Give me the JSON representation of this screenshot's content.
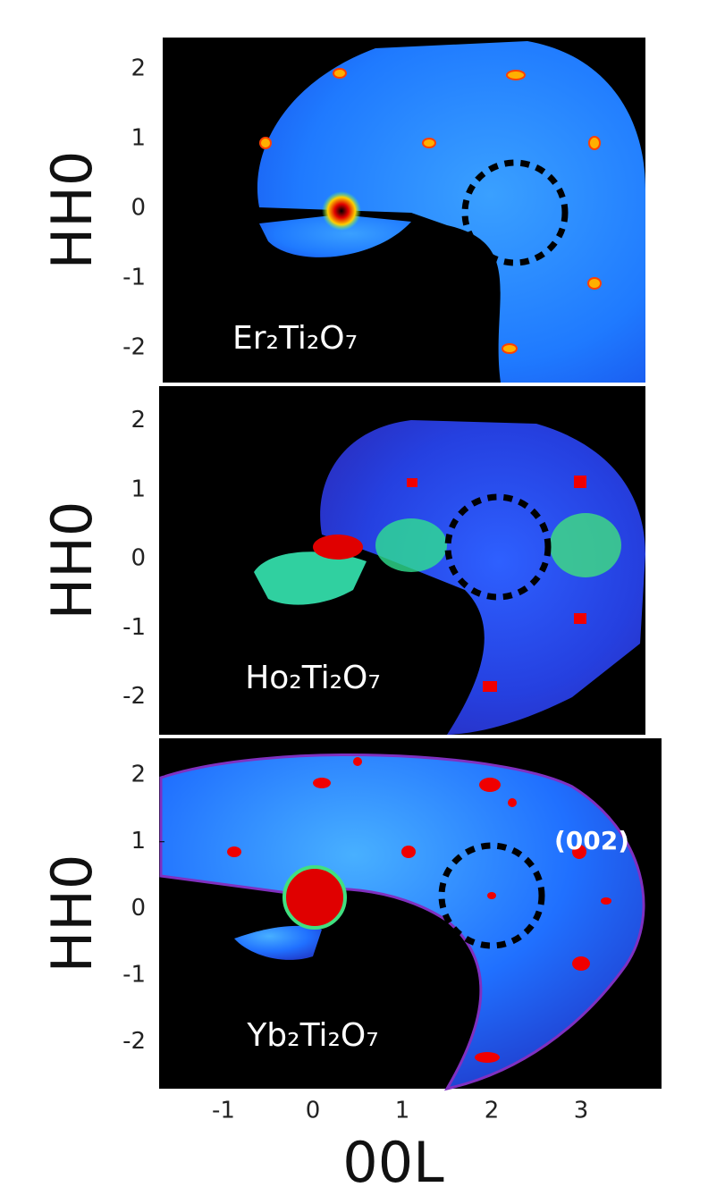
{
  "chart_data": [
    {
      "type": "heatmap",
      "label": "Er₂Ti₂O₇",
      "ylabel": "HH0",
      "ylim": [
        -2.5,
        2.45
      ],
      "yticks": [
        -2,
        -1,
        0,
        1,
        2
      ]
    },
    {
      "type": "heatmap",
      "label": "Ho₂Ti₂O₇",
      "ylabel": "HH0",
      "ylim": [
        -2.55,
        2.5
      ],
      "yticks": [
        -2,
        -1,
        0,
        1,
        2
      ]
    },
    {
      "type": "heatmap",
      "label": "Yb₂Ti₂O₇",
      "ylabel": "HH0",
      "ylim": [
        -2.7,
        2.55
      ],
      "yticks": [
        -2,
        -1,
        0,
        1,
        2
      ],
      "annotation": "(002)",
      "xlabel": "00L",
      "xlim": [
        -1.72,
        3.9
      ],
      "xticks": [
        -1,
        0,
        1,
        2,
        3
      ]
    }
  ]
}
